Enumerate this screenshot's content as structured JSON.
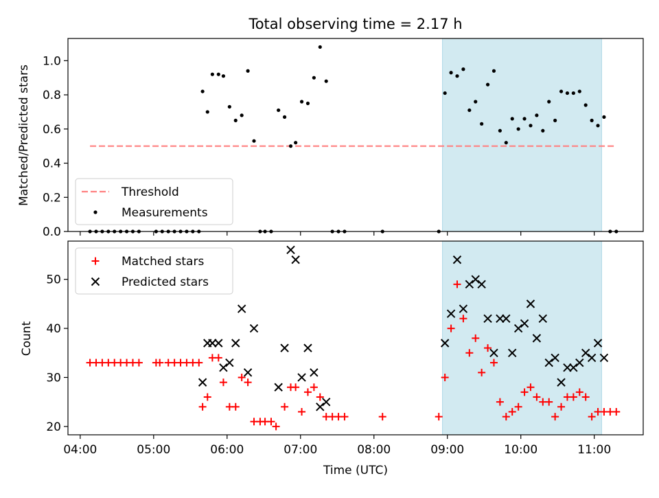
{
  "title": "Total observing time = 2.17 h",
  "xlabel": "Time (UTC)",
  "x_tick_labels": [
    "04:00",
    "05:00",
    "06:00",
    "07:00",
    "08:00",
    "09:00",
    "10:00",
    "11:00"
  ],
  "colors": {
    "threshold": "#ff7f7f",
    "measurements": "#000000",
    "matched": "#ff0000",
    "predicted": "#000000",
    "highlight": "#add8e6"
  },
  "chart_data": [
    {
      "type": "scatter",
      "ylabel": "Matched/Predicted stars",
      "xlim": [
        "03:50",
        "11:40"
      ],
      "ylim": [
        0,
        1.13
      ],
      "y_ticks": [
        "0.0",
        "0.2",
        "0.4",
        "0.6",
        "0.8",
        "1.0"
      ],
      "highlight_span": [
        "08:56",
        "11:06"
      ],
      "threshold": {
        "name": "Threshold",
        "y": 0.5,
        "x": [
          "04:08",
          "11:18"
        ],
        "style": "dashed"
      },
      "legend": [
        "Threshold",
        "Measurements"
      ],
      "legend_position": "lower-left",
      "series": [
        {
          "name": "Measurements",
          "points": [
            [
              "04:08",
              0
            ],
            [
              "04:13",
              0
            ],
            [
              "04:18",
              0
            ],
            [
              "04:23",
              0
            ],
            [
              "04:28",
              0
            ],
            [
              "04:33",
              0
            ],
            [
              "04:38",
              0
            ],
            [
              "04:43",
              0
            ],
            [
              "04:48",
              0
            ],
            [
              "05:02",
              0
            ],
            [
              "05:07",
              0
            ],
            [
              "05:12",
              0
            ],
            [
              "05:17",
              0
            ],
            [
              "05:22",
              0
            ],
            [
              "05:27",
              0
            ],
            [
              "05:32",
              0
            ],
            [
              "05:37",
              0
            ],
            [
              "05:40",
              0.82
            ],
            [
              "05:44",
              0.7
            ],
            [
              "05:48",
              0.92
            ],
            [
              "05:53",
              0.92
            ],
            [
              "05:57",
              0.91
            ],
            [
              "06:02",
              0.73
            ],
            [
              "06:07",
              0.65
            ],
            [
              "06:12",
              0.68
            ],
            [
              "06:17",
              0.94
            ],
            [
              "06:22",
              0.53
            ],
            [
              "06:27",
              0
            ],
            [
              "06:31",
              0
            ],
            [
              "06:36",
              0
            ],
            [
              "06:42",
              0.71
            ],
            [
              "06:47",
              0.67
            ],
            [
              "06:52",
              0.5
            ],
            [
              "06:56",
              0.52
            ],
            [
              "07:01",
              0.76
            ],
            [
              "07:06",
              0.75
            ],
            [
              "07:11",
              0.9
            ],
            [
              "07:16",
              1.08
            ],
            [
              "07:21",
              0.88
            ],
            [
              "07:26",
              0
            ],
            [
              "07:31",
              0
            ],
            [
              "07:36",
              0
            ],
            [
              "08:07",
              0
            ],
            [
              "08:53",
              0
            ],
            [
              "08:58",
              0.81
            ],
            [
              "09:03",
              0.93
            ],
            [
              "09:08",
              0.91
            ],
            [
              "09:13",
              0.95
            ],
            [
              "09:18",
              0.71
            ],
            [
              "09:23",
              0.76
            ],
            [
              "09:28",
              0.63
            ],
            [
              "09:33",
              0.86
            ],
            [
              "09:38",
              0.94
            ],
            [
              "09:43",
              0.59
            ],
            [
              "09:48",
              0.52
            ],
            [
              "09:53",
              0.66
            ],
            [
              "09:58",
              0.6
            ],
            [
              "10:03",
              0.66
            ],
            [
              "10:08",
              0.62
            ],
            [
              "10:13",
              0.68
            ],
            [
              "10:18",
              0.59
            ],
            [
              "10:23",
              0.76
            ],
            [
              "10:28",
              0.65
            ],
            [
              "10:33",
              0.82
            ],
            [
              "10:38",
              0.81
            ],
            [
              "10:43",
              0.81
            ],
            [
              "10:48",
              0.82
            ],
            [
              "10:53",
              0.74
            ],
            [
              "10:58",
              0.65
            ],
            [
              "11:03",
              0.62
            ],
            [
              "11:08",
              0.67
            ],
            [
              "11:13",
              0
            ],
            [
              "11:18",
              0
            ]
          ]
        }
      ]
    },
    {
      "type": "scatter",
      "ylabel": "Count",
      "xlabel": "Time (UTC)",
      "xlim": [
        "03:50",
        "11:40"
      ],
      "ylim": [
        18.3,
        57.8
      ],
      "y_ticks": [
        "20",
        "30",
        "40",
        "50"
      ],
      "highlight_span": [
        "08:56",
        "11:06"
      ],
      "legend": [
        "Matched stars",
        "Predicted stars"
      ],
      "legend_position": "upper-left",
      "series": [
        {
          "name": "Matched stars",
          "marker": "plus",
          "points": [
            [
              "04:08",
              33
            ],
            [
              "04:13",
              33
            ],
            [
              "04:18",
              33
            ],
            [
              "04:23",
              33
            ],
            [
              "04:28",
              33
            ],
            [
              "04:33",
              33
            ],
            [
              "04:38",
              33
            ],
            [
              "04:43",
              33
            ],
            [
              "04:48",
              33
            ],
            [
              "05:02",
              33
            ],
            [
              "05:05",
              33
            ],
            [
              "05:12",
              33
            ],
            [
              "05:17",
              33
            ],
            [
              "05:22",
              33
            ],
            [
              "05:27",
              33
            ],
            [
              "05:32",
              33
            ],
            [
              "05:37",
              33
            ],
            [
              "05:40",
              24
            ],
            [
              "05:44",
              26
            ],
            [
              "05:48",
              34
            ],
            [
              "05:53",
              34
            ],
            [
              "05:57",
              29
            ],
            [
              "06:02",
              24
            ],
            [
              "06:07",
              24
            ],
            [
              "06:12",
              30
            ],
            [
              "06:17",
              29
            ],
            [
              "06:22",
              21
            ],
            [
              "06:27",
              21
            ],
            [
              "06:31",
              21
            ],
            [
              "06:36",
              21
            ],
            [
              "06:40",
              20
            ],
            [
              "06:47",
              24
            ],
            [
              "06:52",
              28
            ],
            [
              "06:56",
              28
            ],
            [
              "07:01",
              23
            ],
            [
              "07:06",
              27
            ],
            [
              "07:11",
              28
            ],
            [
              "07:16",
              26
            ],
            [
              "07:21",
              22
            ],
            [
              "07:26",
              22
            ],
            [
              "07:31",
              22
            ],
            [
              "07:36",
              22
            ],
            [
              "08:07",
              22
            ],
            [
              "08:53",
              22
            ],
            [
              "08:58",
              30
            ],
            [
              "09:03",
              40
            ],
            [
              "09:08",
              49
            ],
            [
              "09:13",
              42
            ],
            [
              "09:18",
              35
            ],
            [
              "09:23",
              38
            ],
            [
              "09:28",
              31
            ],
            [
              "09:33",
              36
            ],
            [
              "09:38",
              33
            ],
            [
              "09:43",
              25
            ],
            [
              "09:48",
              22
            ],
            [
              "09:53",
              23
            ],
            [
              "09:58",
              24
            ],
            [
              "10:03",
              27
            ],
            [
              "10:08",
              28
            ],
            [
              "10:13",
              26
            ],
            [
              "10:18",
              25
            ],
            [
              "10:23",
              25
            ],
            [
              "10:28",
              22
            ],
            [
              "10:33",
              24
            ],
            [
              "10:38",
              26
            ],
            [
              "10:43",
              26
            ],
            [
              "10:48",
              27
            ],
            [
              "10:53",
              26
            ],
            [
              "10:58",
              22
            ],
            [
              "11:03",
              23
            ],
            [
              "11:08",
              23
            ],
            [
              "11:13",
              23
            ],
            [
              "11:18",
              23
            ]
          ]
        },
        {
          "name": "Predicted stars",
          "marker": "x",
          "points": [
            [
              "05:40",
              29
            ],
            [
              "05:44",
              37
            ],
            [
              "05:48",
              37
            ],
            [
              "05:53",
              37
            ],
            [
              "05:57",
              32
            ],
            [
              "06:02",
              33
            ],
            [
              "06:07",
              37
            ],
            [
              "06:12",
              44
            ],
            [
              "06:17",
              31
            ],
            [
              "06:22",
              40
            ],
            [
              "06:42",
              28
            ],
            [
              "06:47",
              36
            ],
            [
              "06:52",
              56
            ],
            [
              "06:56",
              54
            ],
            [
              "07:01",
              30
            ],
            [
              "07:06",
              36
            ],
            [
              "07:11",
              31
            ],
            [
              "07:16",
              24
            ],
            [
              "07:21",
              25
            ],
            [
              "08:58",
              37
            ],
            [
              "09:03",
              43
            ],
            [
              "09:08",
              54
            ],
            [
              "09:13",
              44
            ],
            [
              "09:18",
              49
            ],
            [
              "09:23",
              50
            ],
            [
              "09:28",
              49
            ],
            [
              "09:33",
              42
            ],
            [
              "09:38",
              35
            ],
            [
              "09:43",
              42
            ],
            [
              "09:48",
              42
            ],
            [
              "09:53",
              35
            ],
            [
              "09:58",
              40
            ],
            [
              "10:03",
              41
            ],
            [
              "10:08",
              45
            ],
            [
              "10:13",
              38
            ],
            [
              "10:18",
              42
            ],
            [
              "10:23",
              33
            ],
            [
              "10:28",
              34
            ],
            [
              "10:33",
              29
            ],
            [
              "10:38",
              32
            ],
            [
              "10:43",
              32
            ],
            [
              "10:48",
              33
            ],
            [
              "10:53",
              35
            ],
            [
              "10:58",
              34
            ],
            [
              "11:03",
              37
            ],
            [
              "11:08",
              34
            ]
          ]
        }
      ]
    }
  ]
}
